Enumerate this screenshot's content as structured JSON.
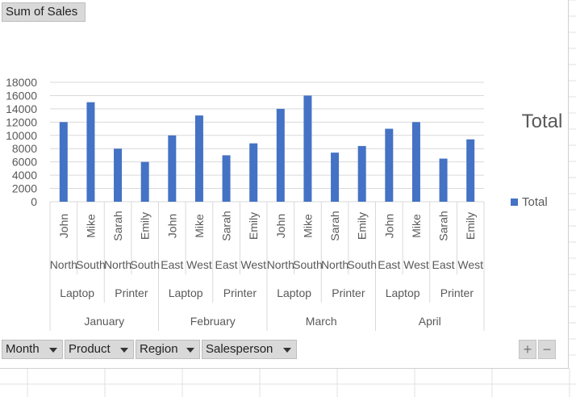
{
  "value_field": "Sum of Sales",
  "axis_fields": [
    "Month",
    "Product",
    "Region",
    "Salesperson"
  ],
  "zoom_controls": {
    "plus": "+",
    "minus": "−"
  },
  "colors": {
    "bar": "#4472c4",
    "grid": "#d9d9d9",
    "axis_text": "#595959",
    "field_button": "#d9d9d9"
  },
  "chart_data": {
    "type": "bar",
    "title": "Total",
    "ylim": [
      0,
      18000
    ],
    "y_ticks": [
      "0",
      "2000",
      "4000",
      "6000",
      "8000",
      "10000",
      "12000",
      "14000",
      "16000",
      "18000"
    ],
    "grid": true,
    "legend": {
      "position": "right",
      "entries": [
        "Total"
      ]
    },
    "series": [
      {
        "name": "Total",
        "values": [
          12000,
          15000,
          8000,
          6000,
          10000,
          13000,
          7000,
          8800,
          14000,
          16000,
          7400,
          8400,
          11000,
          12000,
          6500,
          9400
        ]
      }
    ],
    "categories": [
      {
        "salesperson": "John",
        "region": "North"
      },
      {
        "salesperson": "Mike",
        "region": "South"
      },
      {
        "salesperson": "Sarah",
        "region": "North"
      },
      {
        "salesperson": "Emily",
        "region": "South"
      },
      {
        "salesperson": "John",
        "region": "East"
      },
      {
        "salesperson": "Mike",
        "region": "West"
      },
      {
        "salesperson": "Sarah",
        "region": "East"
      },
      {
        "salesperson": "Emily",
        "region": "West"
      },
      {
        "salesperson": "John",
        "region": "North"
      },
      {
        "salesperson": "Mike",
        "region": "South"
      },
      {
        "salesperson": "Sarah",
        "region": "North"
      },
      {
        "salesperson": "Emily",
        "region": "South"
      },
      {
        "salesperson": "John",
        "region": "East"
      },
      {
        "salesperson": "Mike",
        "region": "West"
      },
      {
        "salesperson": "Sarah",
        "region": "East"
      },
      {
        "salesperson": "Emily",
        "region": "West"
      }
    ],
    "product_groups": [
      "Laptop",
      "Printer",
      "Laptop",
      "Printer",
      "Laptop",
      "Printer",
      "Laptop",
      "Printer"
    ],
    "month_groups": [
      "January",
      "February",
      "March",
      "April"
    ]
  }
}
